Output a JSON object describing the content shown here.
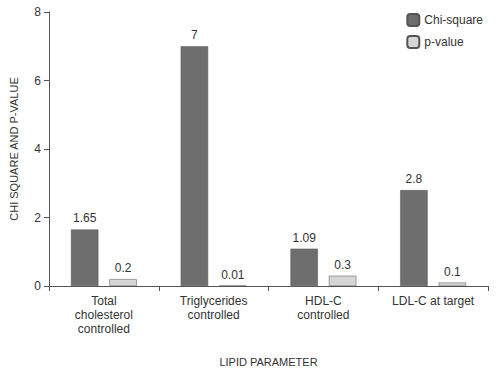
{
  "chart_data": {
    "type": "bar",
    "x_label": "LIPID PARAMETER",
    "y_label": "CHI SQUARE AND P-VALUE",
    "categories": [
      "Total\ncholesterol\ncontrolled",
      "Triglycerides\ncontrolled",
      "HDL-C\ncontrolled",
      "LDL-C at target"
    ],
    "series": [
      {
        "name": "Chi-square",
        "color": "#6e6e6e",
        "values": [
          1.65,
          7,
          1.09,
          2.8
        ]
      },
      {
        "name": "p-value",
        "color": "#d6d6d6",
        "values": [
          0.2,
          0.01,
          0.3,
          0.1
        ]
      }
    ],
    "ylim": [
      0,
      8
    ],
    "yticks": [
      0,
      2,
      4,
      6,
      8
    ],
    "grid": false,
    "legend": "top-right",
    "data_labels": true
  }
}
